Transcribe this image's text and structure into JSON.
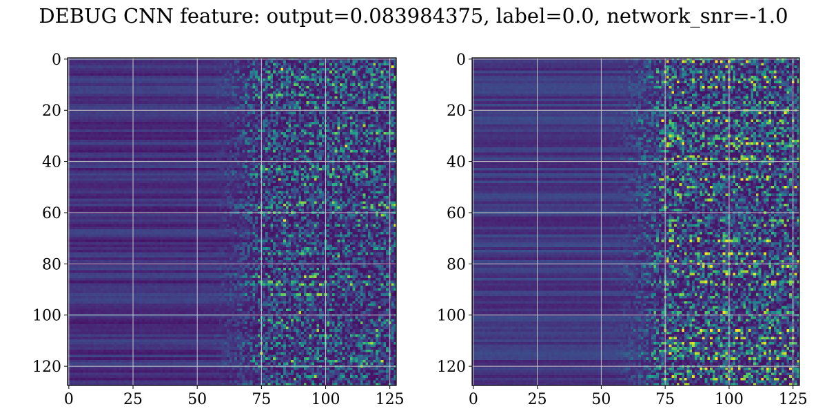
{
  "figure": {
    "title": "DEBUG CNN feature: output=0.083984375, label=0.0, network_snr=-1.0"
  },
  "chart_data": [
    {
      "type": "heatmap",
      "title": "",
      "xlabel": "",
      "ylabel": "",
      "xlim": [
        0,
        127
      ],
      "ylim": [
        127,
        0
      ],
      "x_ticks": [
        0,
        25,
        50,
        75,
        100,
        125
      ],
      "y_ticks": [
        0,
        20,
        40,
        60,
        80,
        100,
        120
      ],
      "colormap": "viridis",
      "grid": true,
      "grid_color": "#c8c8c8",
      "shape": [
        128,
        128
      ],
      "structure": {
        "smooth_columns_upto": 50,
        "transition_columns": [
          50,
          75
        ],
        "speckled_from_column": 75,
        "smooth_level": 0.14,
        "speckle_level": 0.28,
        "bright_point_count": 40
      }
    },
    {
      "type": "heatmap",
      "title": "",
      "xlabel": "",
      "ylabel": "",
      "xlim": [
        0,
        127
      ],
      "ylim": [
        127,
        0
      ],
      "x_ticks": [
        0,
        25,
        50,
        75,
        100,
        125
      ],
      "y_ticks": [
        0,
        20,
        40,
        60,
        80,
        100,
        120
      ],
      "colormap": "viridis",
      "grid": true,
      "grid_color": "#c8c8c8",
      "shape": [
        128,
        128
      ],
      "structure": {
        "smooth_columns_upto": 50,
        "transition_columns": [
          50,
          75
        ],
        "speckled_from_column": 75,
        "smooth_level": 0.17,
        "speckle_level": 0.36,
        "bright_point_count": 70
      }
    }
  ]
}
